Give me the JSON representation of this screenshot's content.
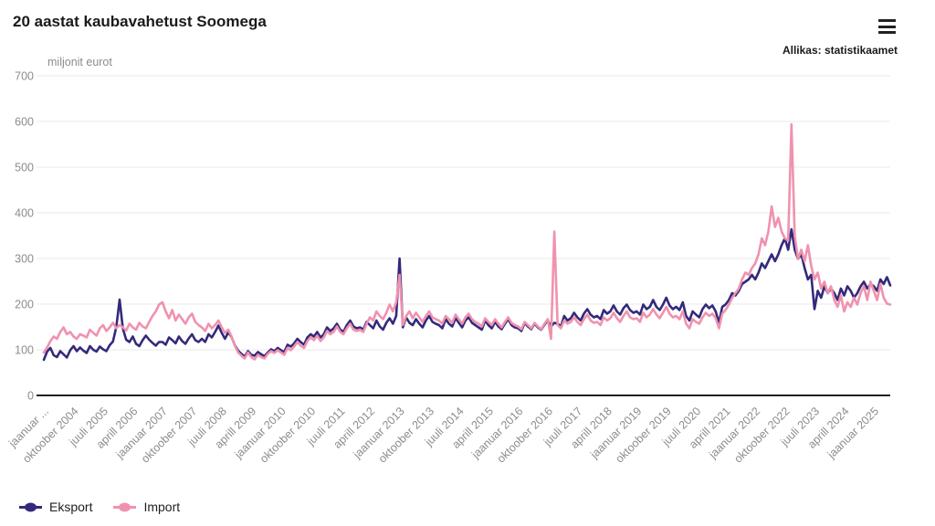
{
  "header": {
    "title": "20 aastat kaubavahetust Soomega",
    "source": "Allikas: statistikaamet",
    "menu_icon": "hamburger-icon"
  },
  "chart_data": {
    "type": "line",
    "title": "20 aastat kaubavahetust Soomega",
    "unit_label": "miljonit eurot",
    "ylabel": "miljonit eurot",
    "ylim": [
      0,
      700
    ],
    "yticks": [
      0,
      100,
      200,
      300,
      400,
      500,
      600,
      700
    ],
    "grid": true,
    "legend_position": "bottom-left",
    "x_tick_labels": [
      "jaanuar ...",
      "oktoober 2004",
      "juuli 2005",
      "aprill 2006",
      "jaanuar 2007",
      "oktoober 2007",
      "juuli 2008",
      "aprill 2009",
      "jaanuar 2010",
      "oktoober 2010",
      "juuli 2011",
      "aprill 2012",
      "jaanuar 2013",
      "oktoober 2013",
      "juuli 2014",
      "aprill 2015",
      "jaanuar 2016",
      "oktoober 2016",
      "juuli 2017",
      "aprill 2018",
      "jaanuar 2019",
      "oktoober 2019",
      "juuli 2020",
      "aprill 2021",
      "jaanuar 2022",
      "oktoober 2022",
      "juuli 2023",
      "aprill 2024",
      "jaanuar 2025"
    ],
    "x_tick_indices": [
      0,
      9,
      18,
      27,
      36,
      45,
      54,
      63,
      72,
      81,
      90,
      99,
      108,
      117,
      126,
      135,
      144,
      153,
      162,
      171,
      180,
      189,
      198,
      207,
      216,
      225,
      234,
      243,
      252
    ],
    "colors": {
      "grid": "#e8e8e8",
      "zero_line": "#212121",
      "axis_text": "#8c8c8c",
      "title_text": "#1a1a1a"
    },
    "series": [
      {
        "name": "Eksport",
        "color": "#332a7c",
        "values": [
          78,
          96,
          104,
          88,
          84,
          97,
          90,
          83,
          99,
          108,
          97,
          105,
          98,
          93,
          108,
          100,
          96,
          107,
          101,
          97,
          110,
          118,
          150,
          210,
          146,
          122,
          117,
          129,
          113,
          108,
          121,
          131,
          122,
          115,
          109,
          117,
          117,
          111,
          127,
          121,
          114,
          129,
          119,
          113,
          125,
          134,
          121,
          117,
          124,
          117,
          134,
          127,
          139,
          153,
          137,
          124,
          138,
          128,
          110,
          98,
          91,
          85,
          97,
          89,
          87,
          95,
          90,
          86,
          94,
          101,
          97,
          104,
          99,
          95,
          111,
          107,
          114,
          124,
          117,
          111,
          127,
          134,
          129,
          139,
          127,
          134,
          149,
          141,
          147,
          157,
          144,
          139,
          154,
          164,
          151,
          147,
          149,
          144,
          161,
          154,
          147,
          164,
          151,
          144,
          159,
          169,
          157,
          174,
          300,
          149,
          171,
          159,
          154,
          167,
          157,
          149,
          164,
          174,
          161,
          157,
          154,
          147,
          167,
          157,
          151,
          169,
          159,
          149,
          164,
          171,
          159,
          154,
          149,
          144,
          164,
          154,
          147,
          161,
          151,
          145,
          157,
          167,
          154,
          149,
          147,
          141,
          159,
          151,
          145,
          157,
          149,
          144,
          155,
          164,
          151,
          159,
          157,
          151,
          174,
          164,
          169,
          181,
          171,
          164,
          179,
          189,
          177,
          171,
          174,
          167,
          187,
          179,
          184,
          197,
          184,
          177,
          191,
          199,
          187,
          181,
          184,
          177,
          199,
          189,
          194,
          209,
          194,
          187,
          199,
          214,
          197,
          189,
          194,
          187,
          204,
          174,
          164,
          184,
          177,
          171,
          189,
          199,
          191,
          197,
          184,
          159,
          194,
          199,
          209,
          224,
          219,
          229,
          244,
          249,
          254,
          264,
          254,
          269,
          289,
          279,
          294,
          309,
          294,
          309,
          329,
          344,
          319,
          364,
          319,
          299,
          309,
          279,
          254,
          264,
          189,
          229,
          214,
          239,
          224,
          234,
          224,
          209,
          234,
          219,
          239,
          229,
          214,
          224,
          239,
          249,
          234,
          244,
          239,
          229,
          254,
          244,
          259,
          241
        ]
      },
      {
        "name": "Import",
        "color": "#f092ae",
        "values": [
          94,
          105,
          119,
          129,
          124,
          139,
          149,
          134,
          139,
          129,
          124,
          134,
          131,
          127,
          144,
          137,
          131,
          147,
          154,
          141,
          149,
          159,
          147,
          154,
          149,
          142,
          157,
          149,
          144,
          159,
          151,
          147,
          161,
          174,
          184,
          199,
          204,
          184,
          169,
          187,
          164,
          177,
          167,
          157,
          171,
          179,
          161,
          154,
          149,
          141,
          157,
          147,
          154,
          164,
          149,
          137,
          144,
          129,
          109,
          94,
          87,
          81,
          94,
          84,
          79,
          89,
          84,
          81,
          91,
          97,
          93,
          99,
          94,
          89,
          104,
          99,
          107,
          117,
          109,
          104,
          119,
          127,
          121,
          131,
          119,
          127,
          141,
          134,
          139,
          151,
          139,
          134,
          147,
          157,
          144,
          141,
          144,
          139,
          157,
          171,
          164,
          184,
          174,
          167,
          181,
          199,
          184,
          204,
          264,
          154,
          174,
          184,
          169,
          181,
          171,
          161,
          174,
          184,
          171,
          167,
          164,
          157,
          174,
          167,
          159,
          177,
          167,
          157,
          171,
          179,
          167,
          161,
          157,
          151,
          169,
          161,
          154,
          167,
          157,
          149,
          161,
          171,
          159,
          154,
          151,
          145,
          161,
          154,
          147,
          159,
          151,
          145,
          157,
          167,
          124,
          359,
          154,
          147,
          164,
          157,
          161,
          171,
          161,
          154,
          167,
          177,
          164,
          159,
          161,
          154,
          171,
          164,
          169,
          181,
          169,
          161,
          174,
          184,
          171,
          167,
          169,
          161,
          181,
          171,
          177,
          189,
          177,
          169,
          181,
          194,
          179,
          171,
          174,
          167,
          184,
          157,
          147,
          167,
          161,
          157,
          171,
          181,
          174,
          179,
          169,
          147,
          179,
          187,
          199,
          214,
          224,
          234,
          254,
          269,
          264,
          279,
          289,
          309,
          344,
          329,
          359,
          414,
          369,
          389,
          359,
          344,
          339,
          594,
          349,
          299,
          319,
          294,
          329,
          284,
          254,
          269,
          234,
          249,
          224,
          239,
          209,
          194,
          219,
          184,
          204,
          194,
          214,
          199,
          224,
          239,
          209,
          249,
          229,
          209,
          244,
          214,
          201,
          199
        ]
      }
    ]
  }
}
